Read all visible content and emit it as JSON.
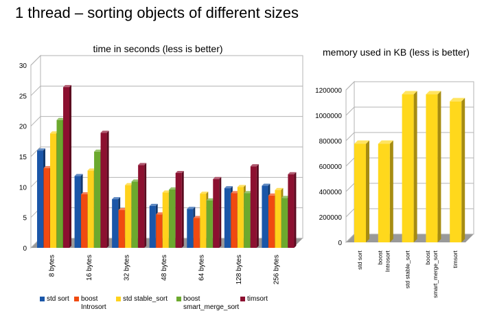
{
  "title": "1 thread – sorting objects of different sizes",
  "chart_data": [
    {
      "type": "bar",
      "title": "time in seconds (less is better)",
      "categories": [
        "8 bytes",
        "16 bytes",
        "32 bytes",
        "48 bytes",
        "64 bytes",
        "128 bytes",
        "256 bytes"
      ],
      "y_ticks": [
        "0",
        "5",
        "10",
        "15",
        "20",
        "25",
        "30"
      ],
      "ylim": [
        0,
        30
      ],
      "grid": true,
      "legend_position": "bottom",
      "series": [
        {
          "name": "std sort",
          "color": "#1a56a8",
          "values": [
            16,
            11.8,
            8,
            6.9,
            6.4,
            9.8,
            10.2
          ]
        },
        {
          "name": "boost Introsort",
          "color": "#f04a10",
          "values": [
            13.1,
            8.8,
            6.2,
            5.5,
            4.9,
            9.0,
            8.6
          ]
        },
        {
          "name": "std stable_sort",
          "color": "#ffd21c",
          "values": [
            18.8,
            12.7,
            10.3,
            9.1,
            8.9,
            10.0,
            9.5
          ]
        },
        {
          "name": "boost smart_merge_sort",
          "color": "#6ca92e",
          "values": [
            21.0,
            15.8,
            10.9,
            9.6,
            7.8,
            9.0,
            8.2
          ]
        },
        {
          "name": "timsort",
          "color": "#8c1030",
          "values": [
            26.4,
            18.9,
            13.6,
            12.3,
            11.3,
            13.4,
            12.1
          ]
        }
      ],
      "legend_lines": [
        [
          "std sort"
        ],
        [
          "boost",
          "Introsort"
        ],
        [
          "std stable_sort"
        ],
        [
          "boost",
          "smart_merge_sort"
        ],
        [
          "timsort"
        ]
      ]
    },
    {
      "type": "bar",
      "title": "memory used in KB (less is better)",
      "categories": [
        "std sort",
        "boost Introsort",
        "std stable_sort",
        "boost smart_merge_sort",
        "timsort"
      ],
      "category_lines": [
        [
          "std sort"
        ],
        [
          "boost",
          "Introsort"
        ],
        [
          "std stable_sort"
        ],
        [
          "boost",
          "smart_merge_sort"
        ],
        [
          "timsort"
        ]
      ],
      "y_ticks": [
        "0",
        "200000",
        "400000",
        "600000",
        "800000",
        "1000000",
        "1200000"
      ],
      "ylim": [
        0,
        1200000
      ],
      "grid": true,
      "color": "#ffd81c",
      "values": [
        776000,
        776000,
        1165000,
        1165000,
        1110000
      ]
    }
  ]
}
